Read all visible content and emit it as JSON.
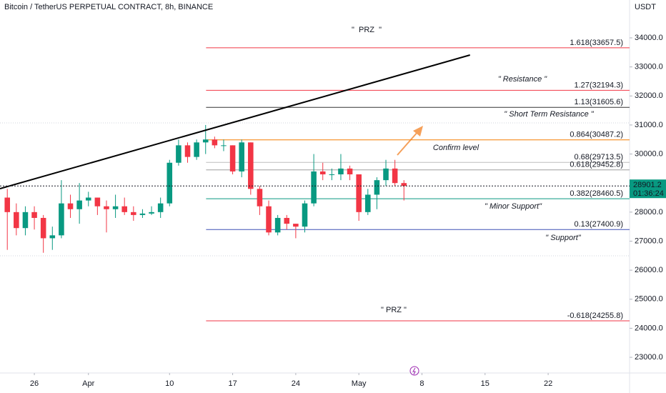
{
  "header": {
    "symbol": "Bitcoin / TetherUS PERPETUAL CONTRACT, 8h, BINANCE",
    "currency": "USDT"
  },
  "chart_data": {
    "type": "candlestick",
    "x": [
      82,
      83,
      84,
      85,
      86,
      87,
      88,
      89,
      90,
      91,
      92,
      93,
      94,
      95,
      96,
      97,
      98,
      99,
      100,
      101,
      102,
      103,
      104,
      105,
      106,
      107,
      108,
      109,
      110,
      111,
      112,
      113,
      114,
      115,
      116,
      117,
      118,
      119,
      120,
      121,
      122,
      123,
      124,
      125,
      126
    ],
    "open": [
      28500,
      28000,
      27450,
      28000,
      27800,
      27100,
      27200,
      28300,
      28100,
      28400,
      28500,
      28200,
      28100,
      28200,
      28000,
      27900,
      27950,
      28000,
      28300,
      29700,
      30300,
      29900,
      30400,
      30500,
      30300,
      30300,
      29400,
      30400,
      28800,
      28200,
      27300,
      27800,
      27600,
      27500,
      28300,
      29400,
      29300,
      29300,
      29500,
      29300,
      28000,
      28600,
      29100,
      29500,
      29000
    ],
    "high": [
      28800,
      28300,
      28200,
      28200,
      27900,
      27500,
      29100,
      28600,
      29000,
      28700,
      28500,
      28400,
      28600,
      28500,
      28200,
      28100,
      28200,
      28500,
      29800,
      30500,
      30400,
      30500,
      31000,
      30600,
      30500,
      30300,
      30500,
      30400,
      28900,
      28400,
      27900,
      27900,
      27600,
      28400,
      30000,
      29700,
      29500,
      30000,
      29600,
      29300,
      28800,
      29200,
      29800,
      29800,
      29100
    ],
    "low": [
      26700,
      27200,
      27200,
      27400,
      26600,
      26700,
      27100,
      27800,
      27600,
      28200,
      27900,
      27300,
      27800,
      27900,
      27700,
      27800,
      27900,
      27800,
      28200,
      29600,
      29700,
      29800,
      30000,
      30200,
      30100,
      29300,
      29200,
      28600,
      27900,
      27200,
      27200,
      27400,
      27100,
      27300,
      28200,
      29100,
      29100,
      29100,
      29100,
      27700,
      27900,
      28100,
      28900,
      28900,
      28400
    ],
    "close": [
      28000,
      27450,
      28000,
      27800,
      27100,
      27200,
      28300,
      28100,
      28400,
      28500,
      28200,
      28100,
      28200,
      28000,
      27900,
      27950,
      28000,
      28300,
      29700,
      30300,
      29900,
      30400,
      30500,
      30300,
      30300,
      29400,
      30400,
      28800,
      28200,
      27300,
      27800,
      27600,
      27500,
      28300,
      29400,
      29300,
      29300,
      29500,
      29300,
      28000,
      28600,
      29100,
      29500,
      29000,
      28900
    ],
    "up_color": "#089981",
    "down_color": "#f23645",
    "xlim": [
      81.19,
      151.03
    ],
    "xticks": [
      {
        "value": 85,
        "label": "26"
      },
      {
        "value": 91,
        "label": "Apr"
      },
      {
        "value": 100,
        "label": "10"
      },
      {
        "value": 107,
        "label": "17"
      },
      {
        "value": 114,
        "label": "24"
      },
      {
        "value": 121,
        "label": "May"
      },
      {
        "value": 128,
        "label": "8"
      },
      {
        "value": 135,
        "label": "15"
      },
      {
        "value": 142,
        "label": "22"
      }
    ],
    "ylim": [
      22460,
      35304
    ],
    "yticks": [
      {
        "value": 23000,
        "label": "23000.0"
      },
      {
        "value": 24000,
        "label": "24000.0"
      },
      {
        "value": 25000,
        "label": "25000.0"
      },
      {
        "value": 26000,
        "label": "26000.0"
      },
      {
        "value": 27000,
        "label": "27000.0"
      },
      {
        "value": 28000,
        "label": "28000.0"
      },
      {
        "value": 29000,
        "label": "29000.0"
      },
      {
        "value": 30000,
        "label": "30000.0"
      },
      {
        "value": 31000,
        "label": "31000.0"
      },
      {
        "value": 32000,
        "label": "32000.0"
      },
      {
        "value": 33000,
        "label": "33000.0"
      },
      {
        "value": 34000,
        "label": "34000.0"
      }
    ],
    "current_price": 28901.2,
    "countdown": "01:36:24",
    "price_color": "#089981",
    "trend_line": {
      "x": [
        81.19,
        133.33
      ],
      "y": [
        28808,
        33409
      ],
      "color": "#000000"
    },
    "fib_levels": [
      {
        "label": "1.618(33657.5)",
        "value": 33657.5,
        "color": "#f23645",
        "x_start": 104.05
      },
      {
        "label": "1.27(32194.3)",
        "value": 32194.3,
        "color": "#f23645",
        "x_start": 104.05
      },
      {
        "label": "1.13(31605.6)",
        "value": 31605.6,
        "color": "#333333",
        "x_start": 104.05
      },
      {
        "label": "0.864(30487.2)",
        "value": 30487.2,
        "color": "#f57c00",
        "x_start": 104.05
      },
      {
        "label": "0.68(29713.5)",
        "value": 29713.5,
        "color": "#bdbdbd",
        "x_start": 104.05
      },
      {
        "label": "0.618(29452.8)",
        "value": 29452.8,
        "color": "#9e9e9e",
        "x_start": 104.05
      },
      {
        "label": "0.382(28460.5)",
        "value": 28460.5,
        "color": "#089981",
        "x_start": 104.05
      },
      {
        "label": "0.13(27400.9)",
        "value": 27400.9,
        "color": "#3f51b5",
        "x_start": 104.05
      },
      {
        "label": "-0.618(24255.8)",
        "value": 24255.8,
        "color": "#f23645",
        "x_start": 104.05
      }
    ],
    "annotations": [
      "\"  PRZ  \"",
      "\" Resistance \"",
      "\" Short Term Resistance \"",
      "Confirm level",
      "\" Minor Support\"",
      "\" Support\"",
      "\" PRZ \""
    ]
  }
}
